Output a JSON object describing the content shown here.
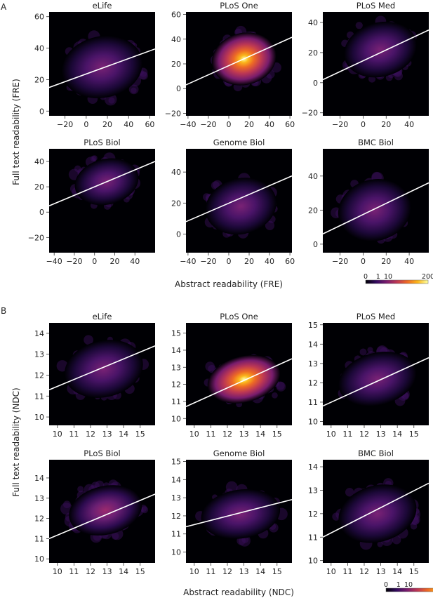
{
  "panel_labels": [
    "A",
    "B"
  ],
  "colorbar": {
    "ticks": [
      "0",
      "1",
      "10",
      "200"
    ],
    "colormap": [
      "#000004",
      "#320a5e",
      "#781c6d",
      "#bc3754",
      "#ed6925",
      "#fbb61a",
      "#fcffa4"
    ]
  },
  "colors": {
    "regression_line": "#ffffff",
    "background": "#000004"
  },
  "chart_data": [
    {
      "type": "heatmap",
      "group": "A",
      "title": "eLife",
      "xlabel": "Abstract readability (FRE)",
      "ylabel": "Full text readability (FRE)",
      "xlim": [
        -35,
        65
      ],
      "ylim": [
        -3,
        63
      ],
      "xticks": [
        -20,
        0,
        20,
        40,
        60
      ],
      "yticks": [
        0,
        20,
        40,
        60
      ],
      "density_center": [
        15,
        28
      ],
      "density_spread": [
        24,
        13
      ],
      "peak_intensity": 0.35,
      "regression_line": {
        "x": [
          -35,
          65
        ],
        "y": [
          15,
          39.5
        ]
      }
    },
    {
      "type": "heatmap",
      "group": "A",
      "title": "PLoS One",
      "xlabel": "Abstract readability (FRE)",
      "ylabel": "Full text readability (FRE)",
      "xlim": [
        -42,
        62
      ],
      "ylim": [
        -22,
        62
      ],
      "xticks": [
        -40,
        -20,
        0,
        20,
        40,
        60
      ],
      "yticks": [
        -20,
        0,
        20,
        40,
        60
      ],
      "density_center": [
        15,
        24
      ],
      "density_spread": [
        20,
        14
      ],
      "peak_intensity": 1.0,
      "regression_line": {
        "x": [
          -42,
          62
        ],
        "y": [
          3,
          41.5
        ]
      }
    },
    {
      "type": "heatmap",
      "group": "A",
      "title": "PLoS Med",
      "xlabel": "Abstract readability (FRE)",
      "ylabel": "Full text readability (FRE)",
      "xlim": [
        -35,
        57
      ],
      "ylim": [
        -22,
        47
      ],
      "xticks": [
        -20,
        0,
        20,
        40
      ],
      "yticks": [
        -20,
        0,
        20,
        40
      ],
      "density_center": [
        15,
        22
      ],
      "density_spread": [
        20,
        12
      ],
      "peak_intensity": 0.32,
      "regression_line": {
        "x": [
          -35,
          57
        ],
        "y": [
          2,
          35
        ]
      }
    },
    {
      "type": "heatmap",
      "group": "A",
      "title": "PLoS Biol",
      "xlabel": "Abstract readability (FRE)",
      "ylabel": "Full text readability (FRE)",
      "xlim": [
        -45,
        60
      ],
      "ylim": [
        -32,
        50
      ],
      "xticks": [
        -40,
        -20,
        0,
        20,
        40
      ],
      "yticks": [
        -20,
        0,
        20,
        40
      ],
      "density_center": [
        12,
        24
      ],
      "density_spread": [
        20,
        12
      ],
      "peak_intensity": 0.38,
      "regression_line": {
        "x": [
          -45,
          60
        ],
        "y": [
          5,
          40
        ]
      }
    },
    {
      "type": "heatmap",
      "group": "A",
      "title": "Genome Biol",
      "xlabel": "Abstract readability (FRE)",
      "ylabel": "Full text readability (FRE)",
      "xlim": [
        -42,
        62
      ],
      "ylim": [
        -12,
        55
      ],
      "xticks": [
        -40,
        -20,
        0,
        20,
        40,
        60
      ],
      "yticks": [
        0,
        20,
        40
      ],
      "density_center": [
        12,
        18
      ],
      "density_spread": [
        22,
        12
      ],
      "peak_intensity": 0.28,
      "regression_line": {
        "x": [
          -42,
          62
        ],
        "y": [
          8,
          37.5
        ]
      }
    },
    {
      "type": "heatmap",
      "group": "A",
      "title": "BMC Biol",
      "xlabel": "Abstract readability (FRE)",
      "ylabel": "Full text readability (FRE)",
      "xlim": [
        -35,
        57
      ],
      "ylim": [
        -5,
        56
      ],
      "xticks": [
        -20,
        0,
        20,
        40
      ],
      "yticks": [
        0,
        20,
        40
      ],
      "density_center": [
        10,
        20
      ],
      "density_spread": [
        20,
        12
      ],
      "peak_intensity": 0.3,
      "regression_line": {
        "x": [
          -35,
          57
        ],
        "y": [
          6,
          36
        ]
      }
    },
    {
      "type": "heatmap",
      "group": "B",
      "title": "eLife",
      "xlabel": "Abstract readability (NDC)",
      "ylabel": "Full text readability (NDC)",
      "xlim": [
        9.5,
        15.9
      ],
      "ylim": [
        9.6,
        14.5
      ],
      "xticks": [
        10,
        11,
        12,
        13,
        14,
        15
      ],
      "yticks": [
        10,
        11,
        12,
        13,
        14
      ],
      "density_center": [
        12.8,
        12.3
      ],
      "density_spread": [
        1.5,
        0.9
      ],
      "peak_intensity": 0.3,
      "regression_line": {
        "x": [
          9.5,
          15.9
        ],
        "y": [
          11.3,
          13.4
        ]
      }
    },
    {
      "type": "heatmap",
      "group": "B",
      "title": "PLoS One",
      "xlabel": "Abstract readability (NDC)",
      "ylabel": "Full text readability (NDC)",
      "xlim": [
        9.5,
        15.9
      ],
      "ylim": [
        9.6,
        15.6
      ],
      "xticks": [
        10,
        11,
        12,
        13,
        14,
        15
      ],
      "yticks": [
        10,
        11,
        12,
        13,
        14,
        15
      ],
      "density_center": [
        13.0,
        12.3
      ],
      "density_spread": [
        1.4,
        0.9
      ],
      "peak_intensity": 1.0,
      "regression_line": {
        "x": [
          9.5,
          15.9
        ],
        "y": [
          10.7,
          13.5
        ]
      }
    },
    {
      "type": "heatmap",
      "group": "B",
      "title": "PLoS Med",
      "xlabel": "Abstract readability (NDC)",
      "ylabel": "Full text readability (NDC)",
      "xlim": [
        9.5,
        15.9
      ],
      "ylim": [
        9.8,
        15.1
      ],
      "xticks": [
        10,
        11,
        12,
        13,
        14,
        15
      ],
      "yticks": [
        10,
        11,
        12,
        13,
        14,
        15
      ],
      "density_center": [
        12.8,
        12.2
      ],
      "density_spread": [
        1.5,
        0.9
      ],
      "peak_intensity": 0.3,
      "regression_line": {
        "x": [
          9.5,
          15.9
        ],
        "y": [
          10.8,
          13.3
        ]
      }
    },
    {
      "type": "heatmap",
      "group": "B",
      "title": "PLoS Biol",
      "xlabel": "Abstract readability (NDC)",
      "ylabel": "Full text readability (NDC)",
      "xlim": [
        9.5,
        15.9
      ],
      "ylim": [
        9.8,
        14.9
      ],
      "xticks": [
        10,
        11,
        12,
        13,
        14,
        15
      ],
      "yticks": [
        10,
        11,
        12,
        13,
        14
      ],
      "density_center": [
        12.9,
        12.4
      ],
      "density_spread": [
        1.4,
        0.8
      ],
      "peak_intensity": 0.45,
      "regression_line": {
        "x": [
          9.5,
          15.9
        ],
        "y": [
          11.0,
          13.2
        ]
      }
    },
    {
      "type": "heatmap",
      "group": "B",
      "title": "Genome Biol",
      "xlabel": "Abstract readability (NDC)",
      "ylabel": "Full text readability (NDC)",
      "xlim": [
        9.5,
        15.9
      ],
      "ylim": [
        9.4,
        15.1
      ],
      "xticks": [
        10,
        11,
        12,
        13,
        14,
        15
      ],
      "yticks": [
        10,
        11,
        12,
        13,
        14,
        15
      ],
      "density_center": [
        12.8,
        12.1
      ],
      "density_spread": [
        1.5,
        0.9
      ],
      "peak_intensity": 0.28,
      "regression_line": {
        "x": [
          9.5,
          15.9
        ],
        "y": [
          11.4,
          12.9
        ]
      }
    },
    {
      "type": "heatmap",
      "group": "B",
      "title": "BMC Biol",
      "xlabel": "Abstract readability (NDC)",
      "ylabel": "Full text readability (NDC)",
      "xlim": [
        9.5,
        15.9
      ],
      "ylim": [
        9.9,
        14.3
      ],
      "xticks": [
        10,
        11,
        12,
        13,
        14,
        15
      ],
      "yticks": [
        10,
        11,
        12,
        13,
        14
      ],
      "density_center": [
        12.8,
        12.0
      ],
      "density_spread": [
        1.5,
        0.8
      ],
      "peak_intensity": 0.3,
      "regression_line": {
        "x": [
          9.5,
          15.9
        ],
        "y": [
          11.0,
          13.3
        ]
      }
    }
  ],
  "axis_titles": {
    "A_x": "Abstract readability (FRE)",
    "A_y": "Full text readability (FRE)",
    "B_x": "Abstract readability (NDC)",
    "B_y": "Full text readability (NDC)"
  }
}
